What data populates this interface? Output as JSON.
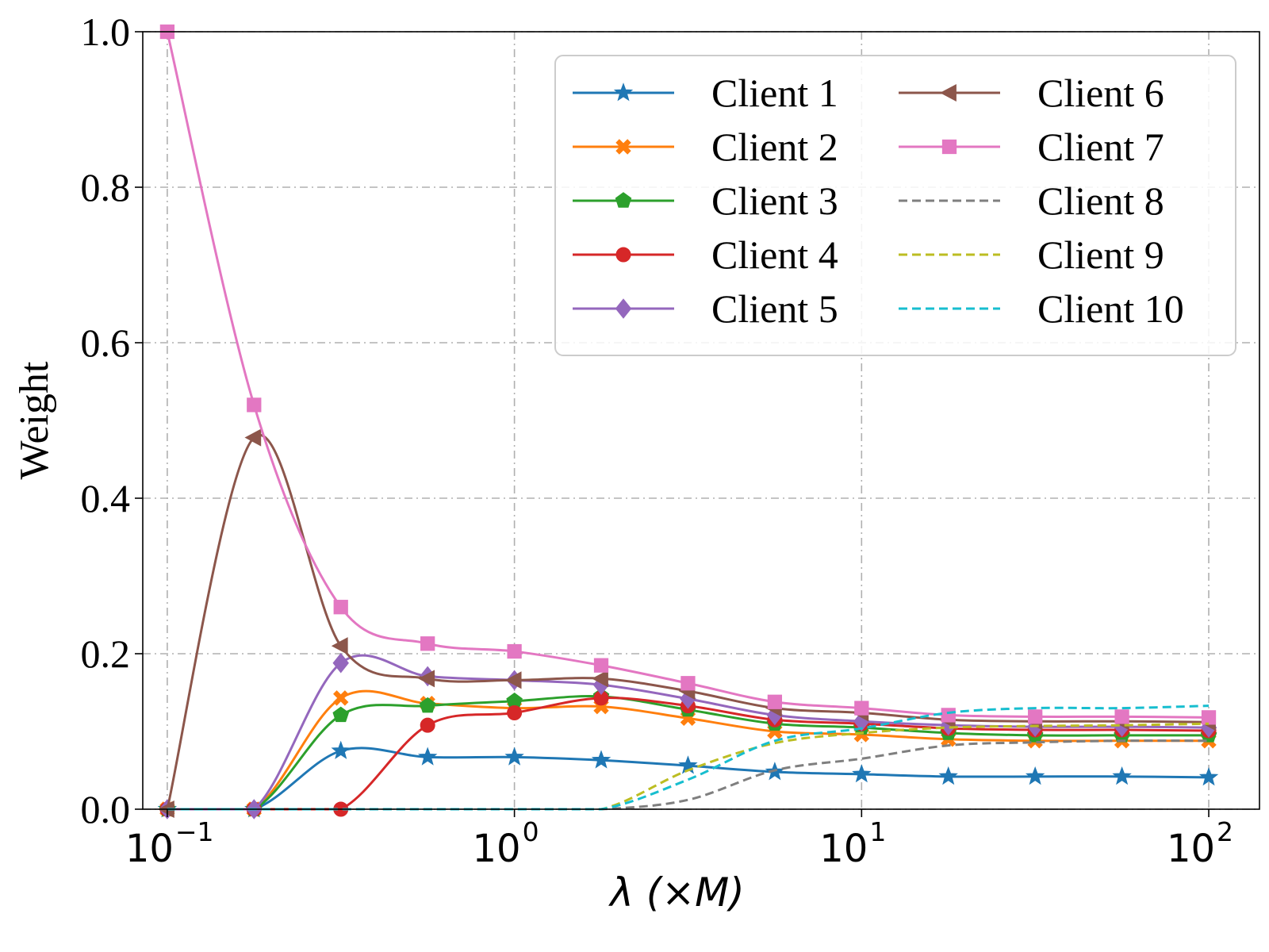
{
  "colors": {
    "Client 1": "#1f77b4",
    "Client 2": "#ff7f0e",
    "Client 3": "#2ca02c",
    "Client 4": "#d62728",
    "Client 5": "#9467bd",
    "Client 6": "#8c564b",
    "Client 7": "#e377c2",
    "Client 8": "#7f7f7f",
    "Client 9": "#bcbd22",
    "Client 10": "#17becf"
  },
  "chart_data": {
    "type": "line",
    "title": "",
    "xlabel": "λ (×M)",
    "ylabel": "Weight",
    "xscale": "log",
    "xlim": [
      0.085,
      140
    ],
    "ylim": [
      0.0,
      1.0
    ],
    "grid": true,
    "legend_position": "top-right",
    "x_ticks": [
      {
        "value": 0.1,
        "base": "10",
        "exp": "−1"
      },
      {
        "value": 1,
        "base": "10",
        "exp": "0"
      },
      {
        "value": 10,
        "base": "10",
        "exp": "1"
      },
      {
        "value": 100,
        "base": "10",
        "exp": "2"
      }
    ],
    "y_ticks": [
      "0.0",
      "0.2",
      "0.4",
      "0.6",
      "0.8",
      "1.0"
    ],
    "x": [
      0.1,
      0.1778,
      0.3162,
      0.5623,
      1.0,
      1.778,
      3.162,
      5.623,
      10.0,
      17.78,
      31.62,
      56.23,
      100.0
    ],
    "series": [
      {
        "name": "Client 1",
        "marker": "star",
        "dash": false,
        "values": [
          0.0,
          0.0,
          0.075,
          0.067,
          0.067,
          0.063,
          0.056,
          0.048,
          0.045,
          0.042,
          0.042,
          0.042,
          0.041
        ]
      },
      {
        "name": "Client 2",
        "marker": "x",
        "dash": false,
        "values": [
          0.0,
          0.0,
          0.143,
          0.136,
          0.13,
          0.132,
          0.117,
          0.1,
          0.096,
          0.09,
          0.088,
          0.088,
          0.088
        ]
      },
      {
        "name": "Client 3",
        "marker": "pentagon",
        "dash": false,
        "values": [
          0.0,
          0.0,
          0.121,
          0.133,
          0.139,
          0.145,
          0.128,
          0.11,
          0.105,
          0.098,
          0.095,
          0.095,
          0.095
        ]
      },
      {
        "name": "Client 4",
        "marker": "circle",
        "dash": false,
        "values": [
          0.0,
          0.0,
          0.0,
          0.108,
          0.124,
          0.143,
          0.133,
          0.115,
          0.11,
          0.104,
          0.102,
          0.102,
          0.101
        ]
      },
      {
        "name": "Client 5",
        "marker": "diamond",
        "dash": false,
        "values": [
          0.0,
          0.0,
          0.188,
          0.171,
          0.166,
          0.16,
          0.142,
          0.121,
          0.113,
          0.108,
          0.106,
          0.106,
          0.105
        ]
      },
      {
        "name": "Client 6",
        "marker": "triangle-left",
        "dash": false,
        "values": [
          0.0,
          0.478,
          0.21,
          0.168,
          0.166,
          0.168,
          0.152,
          0.13,
          0.124,
          0.115,
          0.113,
          0.113,
          0.112
        ]
      },
      {
        "name": "Client 7",
        "marker": "square",
        "dash": false,
        "values": [
          1.0,
          0.52,
          0.26,
          0.213,
          0.203,
          0.185,
          0.162,
          0.138,
          0.13,
          0.121,
          0.119,
          0.119,
          0.118
        ]
      },
      {
        "name": "Client 8",
        "marker": "none",
        "dash": true,
        "values": [
          0.0,
          0.0,
          0.0,
          0.0,
          0.0,
          0.0,
          0.012,
          0.05,
          0.065,
          0.082,
          0.086,
          0.088,
          0.088
        ]
      },
      {
        "name": "Client 9",
        "marker": "none",
        "dash": true,
        "values": [
          0.0,
          0.0,
          0.0,
          0.0,
          0.0,
          0.0,
          0.05,
          0.085,
          0.098,
          0.105,
          0.107,
          0.108,
          0.11
        ]
      },
      {
        "name": "Client 10",
        "marker": "none",
        "dash": true,
        "values": [
          0.0,
          0.0,
          0.0,
          0.0,
          0.0,
          0.0,
          0.038,
          0.088,
          0.104,
          0.124,
          0.13,
          0.13,
          0.133
        ]
      }
    ]
  }
}
